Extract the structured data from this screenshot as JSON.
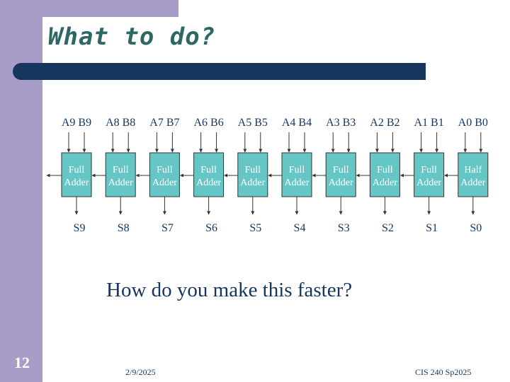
{
  "slide": {
    "title": "What to do?",
    "number": "12",
    "question": "How do you make this faster?",
    "footer_date": "2/9/2025",
    "footer_course": "CIS 240 Sp2025"
  },
  "colors": {
    "sidebar": "#a89cc8",
    "title_bar": "#14365f",
    "title_text": "#2c6864",
    "adder_fill": "#66c6c6",
    "text": "#14365f"
  },
  "adders": [
    {
      "inputs": "A9 B9",
      "label_line1": "Full",
      "label_line2": "Adder",
      "sum": "S9"
    },
    {
      "inputs": "A8 B8",
      "label_line1": "Full",
      "label_line2": "Adder",
      "sum": "S8"
    },
    {
      "inputs": "A7 B7",
      "label_line1": "Full",
      "label_line2": "Adder",
      "sum": "S7"
    },
    {
      "inputs": "A6 B6",
      "label_line1": "Full",
      "label_line2": "Adder",
      "sum": "S6"
    },
    {
      "inputs": "A5 B5",
      "label_line1": "Full",
      "label_line2": "Adder",
      "sum": "S5"
    },
    {
      "inputs": "A4 B4",
      "label_line1": "Full",
      "label_line2": "Adder",
      "sum": "S4"
    },
    {
      "inputs": "A3 B3",
      "label_line1": "Full",
      "label_line2": "Adder",
      "sum": "S3"
    },
    {
      "inputs": "A2 B2",
      "label_line1": "Full",
      "label_line2": "Adder",
      "sum": "S2"
    },
    {
      "inputs": "A1 B1",
      "label_line1": "Full",
      "label_line2": "Adder",
      "sum": "S1"
    },
    {
      "inputs": "A0 B0",
      "label_line1": "Half",
      "label_line2": "Adder",
      "sum": "S0"
    }
  ]
}
